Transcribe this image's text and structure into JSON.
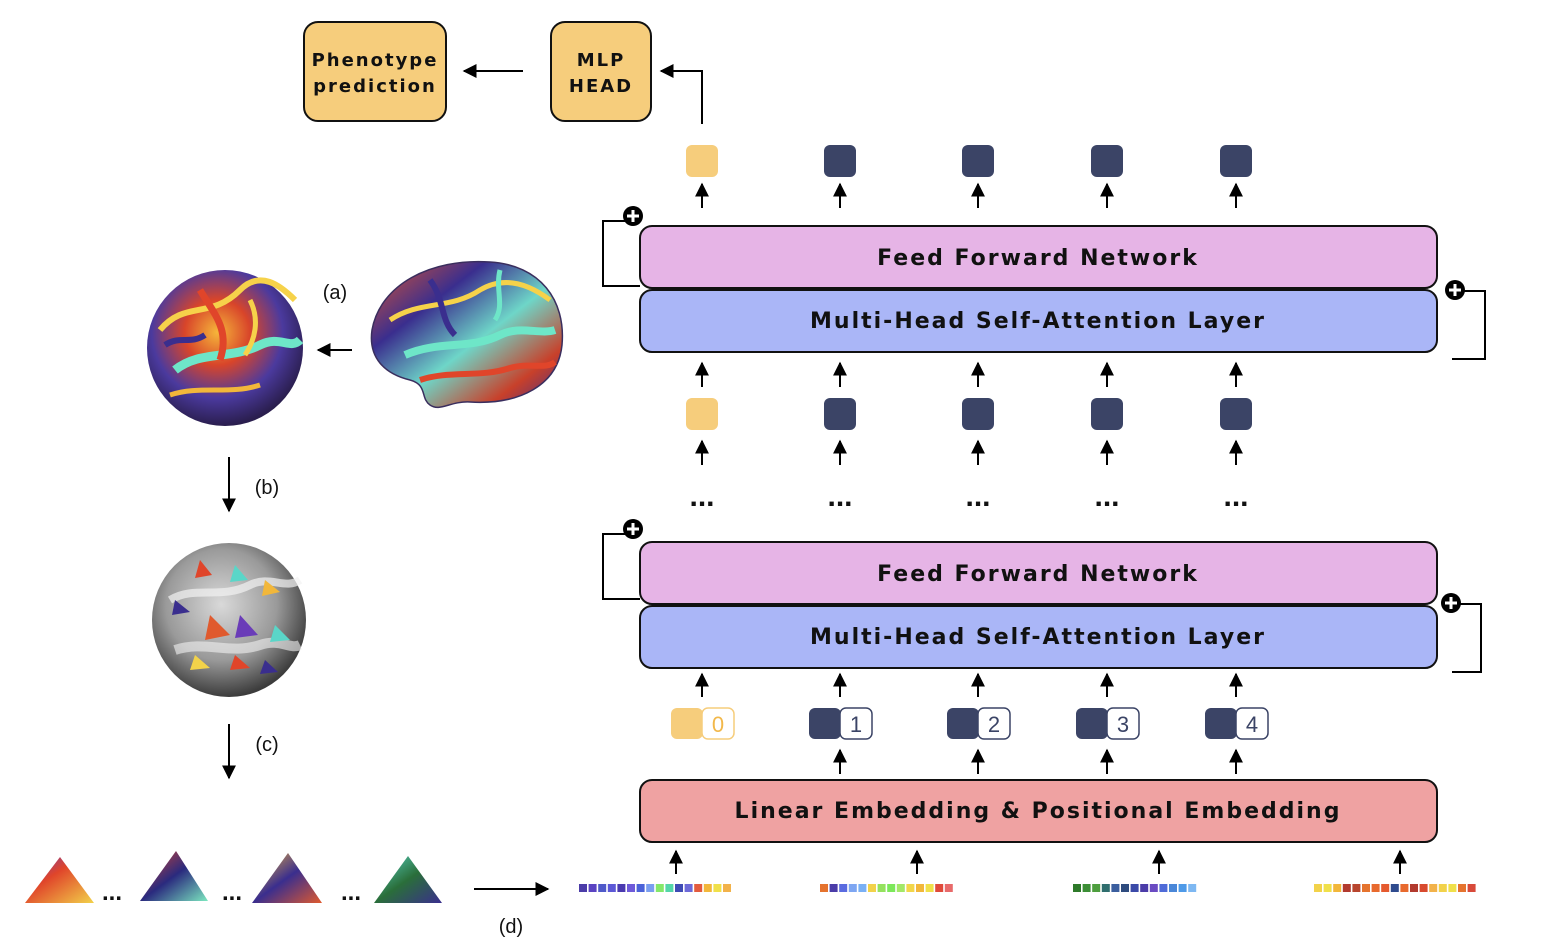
{
  "diagram": {
    "head": {
      "phenotype_line1": "Phenotype",
      "phenotype_line2": "prediction",
      "mlp_line1": "MLP",
      "mlp_line2": "HEAD"
    },
    "layers": {
      "ffn_label": "Feed Forward Network",
      "mhsa_label": "Multi-Head Self-Attention Layer",
      "embedding_label": "Linear Embedding & Positional Embedding",
      "ellipsis": "..."
    },
    "steps": {
      "a": "(a)",
      "b": "(b)",
      "c": "(c)",
      "d": "(d)"
    },
    "patch_ellipsis": "...",
    "tokens": [
      "0",
      "1",
      "2",
      "3",
      "4"
    ],
    "colors": {
      "head_fill": "#F6CD7C",
      "ffn_fill": "#E6B4E6",
      "mhsa_fill": "#AAB6F7",
      "embed_fill": "#EFA2A2",
      "cls_token": "#F6CD7C",
      "patch_token": "#3B4466"
    },
    "patch_sequences": [
      [
        "#4B3CA8",
        "#5A43C2",
        "#4F59C9",
        "#5C58D6",
        "#4A3AB0",
        "#6E5AD9",
        "#4B62D8",
        "#7A9EF0",
        "#84E86A",
        "#54D6A8",
        "#3F4BB5",
        "#6D6AD8",
        "#E35B3E",
        "#F2B73A",
        "#F0E04A",
        "#F2B24A"
      ],
      [
        "#E5732E",
        "#4B3CA8",
        "#5A6BE0",
        "#7EA6F2",
        "#7AB0F5",
        "#F2D24A",
        "#94E25E",
        "#7CE85A",
        "#A3E868",
        "#F2D64A",
        "#F2B73A",
        "#F0E04A",
        "#E04A3A",
        "#E86A6A"
      ],
      [
        "#2E7A2A",
        "#3C8E36",
        "#4E9E3E",
        "#2F6E6E",
        "#3B5E9E",
        "#2E4B7E",
        "#3B4AA8",
        "#4B3CA8",
        "#6A4BC2",
        "#4F6BD8",
        "#4A87D8",
        "#4E9AE8",
        "#7EB8F2"
      ],
      [
        "#F2D24A",
        "#F0E04A",
        "#F2B73A",
        "#B23A2E",
        "#B8452E",
        "#E5732E",
        "#E86A2E",
        "#E55A2E",
        "#2F4B8E",
        "#E86A2E",
        "#B23A2E",
        "#D84A2E",
        "#F2B24A",
        "#F2D24A",
        "#F0E04A",
        "#E5732E",
        "#D84A3A"
      ]
    ]
  }
}
